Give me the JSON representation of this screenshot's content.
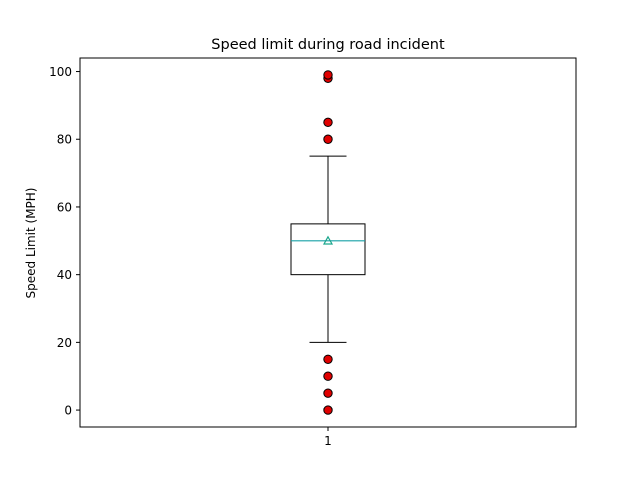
{
  "chart_data": {
    "type": "box",
    "title": "Speed limit during road incident",
    "xlabel": "",
    "ylabel": "Speed Limit (MPH)",
    "ylim": [
      -5,
      104
    ],
    "yticks": [
      0,
      20,
      40,
      60,
      80,
      100
    ],
    "categories": [
      "1"
    ],
    "boxes": [
      {
        "category": "1",
        "whisker_low": 20,
        "q1": 40,
        "median": 50,
        "q3": 55,
        "whisker_high": 75,
        "mean": 50,
        "outliers": [
          0,
          5,
          10,
          15,
          80,
          85,
          98,
          99
        ]
      }
    ],
    "grid": false,
    "colors": {
      "box": "#000000",
      "median": "#17a0a6",
      "mean_marker": "#1aa68c",
      "outlier_fill": "#e00000",
      "outlier_edge": "#000000"
    }
  }
}
